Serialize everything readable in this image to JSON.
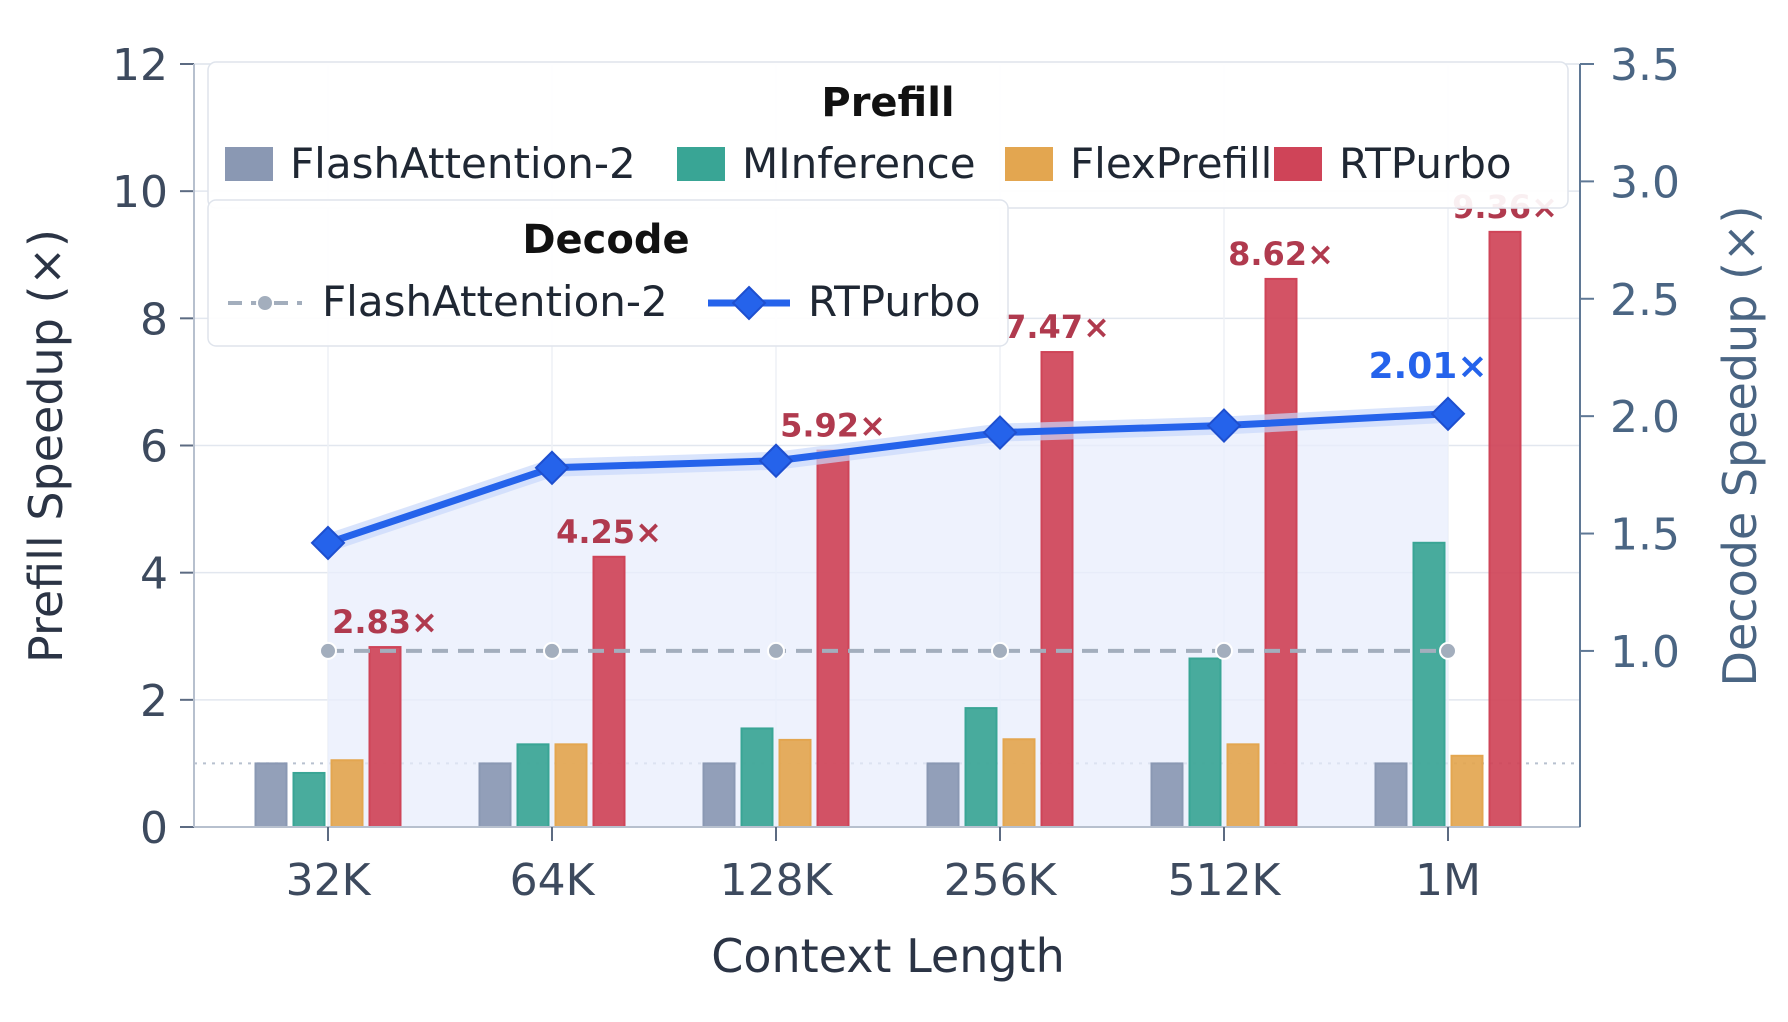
{
  "chart_data": {
    "type": "bar",
    "categories": [
      "32K",
      "64K",
      "128K",
      "256K",
      "512K",
      "1M"
    ],
    "xlabel": "Context Length",
    "ylabel": "Prefill Speedup (×)",
    "y2label": "Decode Speedup (×)",
    "ylim": [
      0,
      12
    ],
    "y2lim": [
      0.25,
      3.5
    ],
    "yticks": [
      "0",
      "2",
      "4",
      "6",
      "8",
      "10",
      "12"
    ],
    "y2ticks": [
      "1.0",
      "1.5",
      "2.0",
      "2.5",
      "3.0",
      "3.5"
    ],
    "reference_line": 1,
    "grid": true,
    "legend_position": "top-left",
    "prefill_series": [
      {
        "name": "FlashAttention-2",
        "color": "#8a98b3",
        "values": [
          1.0,
          1.0,
          1.0,
          1.0,
          1.0,
          1.0
        ]
      },
      {
        "name": "MInference",
        "color": "#39a595",
        "values": [
          0.85,
          1.3,
          1.55,
          1.87,
          2.65,
          4.47
        ]
      },
      {
        "name": "FlexPrefill",
        "color": "#e3a650",
        "values": [
          1.05,
          1.3,
          1.37,
          1.38,
          1.3,
          1.12
        ]
      },
      {
        "name": "RTPurbo",
        "color": "#cf4458",
        "values": [
          2.83,
          4.25,
          5.92,
          7.47,
          8.62,
          9.36
        ]
      }
    ],
    "prefill_labels": [
      "2.83×",
      "4.25×",
      "5.92×",
      "7.47×",
      "8.62×",
      "9.36×"
    ],
    "decode_series": [
      {
        "name": "FlashAttention-2",
        "color": "#a3aebd",
        "values": [
          1.0,
          1.0,
          1.0,
          1.0,
          1.0,
          1.0
        ]
      },
      {
        "name": "RTPurbo",
        "color": "#2563eb",
        "values": [
          1.46,
          1.78,
          1.81,
          1.93,
          1.96,
          2.01
        ]
      }
    ],
    "decode_label": "2.01×",
    "legend": {
      "prefill_title": "Prefill",
      "decode_title": "Decode"
    }
  }
}
